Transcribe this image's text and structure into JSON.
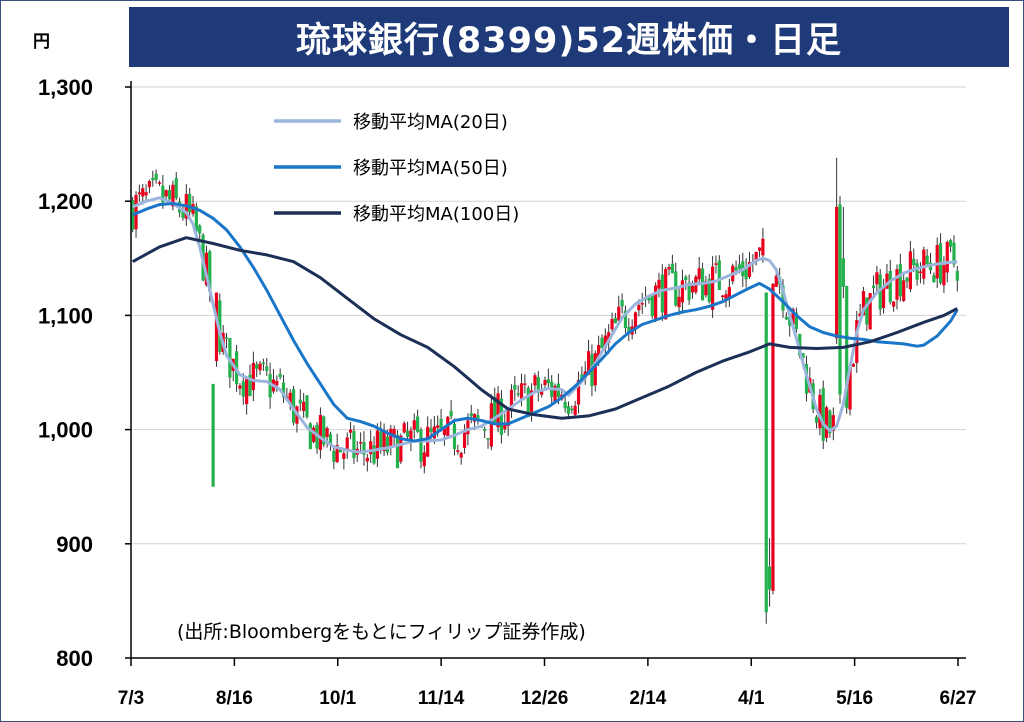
{
  "title": "琉球銀行(8399)52週株価・日足",
  "unit": "円",
  "source": "(出所:Bloombergをもとにフィリップ証券作成)",
  "chart_data": {
    "type": "candlestick",
    "ylim": [
      800,
      1300
    ],
    "y_ticks": [
      800,
      900,
      1000,
      1100,
      1200,
      1300
    ],
    "y_tick_labels": [
      "800",
      "900",
      "1,000",
      "1,100",
      "1,200",
      "1,300"
    ],
    "x_ticks": [
      "7/3",
      "8/16",
      "10/1",
      "11/14",
      "12/26",
      "2/14",
      "4/1",
      "5/16",
      "6/27"
    ],
    "grid": true,
    "legend_position": "top-left",
    "colors": {
      "up": "#e8001c",
      "down": "#22b14c",
      "ma20": "#9bb5dc",
      "ma50": "#1a76c8",
      "ma100": "#1c2f56"
    },
    "series": [
      {
        "name": "移動平均MA(20日)",
        "points": [
          [
            0,
            1195
          ],
          [
            4,
            1200
          ],
          [
            8,
            1203
          ],
          [
            12,
            1198
          ],
          [
            16,
            1190
          ],
          [
            18,
            1180
          ],
          [
            20,
            1160
          ],
          [
            22,
            1135
          ],
          [
            24,
            1110
          ],
          [
            26,
            1085
          ],
          [
            28,
            1065
          ],
          [
            32,
            1048
          ],
          [
            36,
            1043
          ],
          [
            40,
            1042
          ],
          [
            44,
            1035
          ],
          [
            48,
            1018
          ],
          [
            52,
            1002
          ],
          [
            56,
            993
          ],
          [
            60,
            985
          ],
          [
            64,
            982
          ],
          [
            68,
            980
          ],
          [
            72,
            982
          ],
          [
            76,
            984
          ],
          [
            80,
            987
          ],
          [
            84,
            990
          ],
          [
            88,
            990
          ],
          [
            92,
            991
          ],
          [
            96,
            995
          ],
          [
            100,
            1000
          ],
          [
            104,
            1003
          ],
          [
            108,
            1010
          ],
          [
            112,
            1018
          ],
          [
            116,
            1026
          ],
          [
            120,
            1033
          ],
          [
            124,
            1036
          ],
          [
            128,
            1035
          ],
          [
            130,
            1030
          ],
          [
            134,
            1042
          ],
          [
            138,
            1058
          ],
          [
            142,
            1078
          ],
          [
            146,
            1098
          ],
          [
            150,
            1110
          ],
          [
            154,
            1117
          ],
          [
            158,
            1122
          ],
          [
            162,
            1124
          ],
          [
            166,
            1127
          ],
          [
            170,
            1128
          ],
          [
            174,
            1130
          ],
          [
            178,
            1135
          ],
          [
            182,
            1140
          ],
          [
            186,
            1148
          ],
          [
            188,
            1150
          ],
          [
            190,
            1148
          ],
          [
            192,
            1140
          ],
          [
            194,
            1122
          ],
          [
            196,
            1100
          ],
          [
            198,
            1080
          ],
          [
            200,
            1058
          ],
          [
            202,
            1038
          ],
          [
            204,
            1018
          ],
          [
            206,
            1005
          ],
          [
            208,
            999
          ],
          [
            210,
            1003
          ],
          [
            212,
            1022
          ],
          [
            214,
            1055
          ],
          [
            216,
            1085
          ],
          [
            218,
            1105
          ],
          [
            222,
            1120
          ],
          [
            226,
            1130
          ],
          [
            230,
            1137
          ],
          [
            234,
            1141
          ],
          [
            238,
            1144
          ],
          [
            242,
            1146
          ],
          [
            246,
            1147
          ]
        ]
      },
      {
        "name": "移動平均MA(50日)",
        "points": [
          [
            0,
            1188
          ],
          [
            4,
            1193
          ],
          [
            8,
            1197
          ],
          [
            12,
            1198
          ],
          [
            16,
            1196
          ],
          [
            20,
            1192
          ],
          [
            24,
            1185
          ],
          [
            28,
            1175
          ],
          [
            32,
            1160
          ],
          [
            36,
            1142
          ],
          [
            40,
            1122
          ],
          [
            44,
            1100
          ],
          [
            48,
            1078
          ],
          [
            52,
            1058
          ],
          [
            56,
            1040
          ],
          [
            60,
            1022
          ],
          [
            64,
            1010
          ],
          [
            68,
            1007
          ],
          [
            72,
            1003
          ],
          [
            76,
            997
          ],
          [
            80,
            992
          ],
          [
            84,
            990
          ],
          [
            88,
            992
          ],
          [
            92,
            1000
          ],
          [
            96,
            1008
          ],
          [
            100,
            1010
          ],
          [
            104,
            1008
          ],
          [
            108,
            1005
          ],
          [
            112,
            1005
          ],
          [
            116,
            1010
          ],
          [
            120,
            1015
          ],
          [
            124,
            1020
          ],
          [
            128,
            1028
          ],
          [
            132,
            1038
          ],
          [
            136,
            1050
          ],
          [
            140,
            1062
          ],
          [
            144,
            1075
          ],
          [
            148,
            1085
          ],
          [
            152,
            1092
          ],
          [
            156,
            1096
          ],
          [
            160,
            1100
          ],
          [
            164,
            1103
          ],
          [
            168,
            1105
          ],
          [
            172,
            1108
          ],
          [
            176,
            1112
          ],
          [
            180,
            1118
          ],
          [
            184,
            1124
          ],
          [
            187,
            1128
          ],
          [
            190,
            1123
          ],
          [
            194,
            1112
          ],
          [
            198,
            1100
          ],
          [
            202,
            1090
          ],
          [
            206,
            1085
          ],
          [
            210,
            1082
          ],
          [
            214,
            1080
          ],
          [
            218,
            1079
          ],
          [
            222,
            1077
          ],
          [
            226,
            1076
          ],
          [
            230,
            1075
          ],
          [
            234,
            1073
          ],
          [
            236,
            1074
          ],
          [
            240,
            1082
          ],
          [
            244,
            1095
          ],
          [
            246,
            1105
          ]
        ]
      },
      {
        "name": "移動平均MA(100日)",
        "points": [
          [
            0,
            1147
          ],
          [
            8,
            1160
          ],
          [
            16,
            1168
          ],
          [
            24,
            1163
          ],
          [
            32,
            1157
          ],
          [
            40,
            1153
          ],
          [
            48,
            1147
          ],
          [
            56,
            1133
          ],
          [
            64,
            1115
          ],
          [
            72,
            1097
          ],
          [
            80,
            1083
          ],
          [
            88,
            1072
          ],
          [
            96,
            1055
          ],
          [
            104,
            1035
          ],
          [
            112,
            1018
          ],
          [
            120,
            1013
          ],
          [
            128,
            1010
          ],
          [
            136,
            1012
          ],
          [
            144,
            1018
          ],
          [
            152,
            1028
          ],
          [
            160,
            1038
          ],
          [
            168,
            1050
          ],
          [
            176,
            1060
          ],
          [
            184,
            1068
          ],
          [
            190,
            1075
          ],
          [
            196,
            1072
          ],
          [
            204,
            1071
          ],
          [
            212,
            1072
          ],
          [
            220,
            1077
          ],
          [
            228,
            1085
          ],
          [
            236,
            1094
          ],
          [
            242,
            1100
          ],
          [
            246,
            1106
          ]
        ]
      }
    ]
  }
}
